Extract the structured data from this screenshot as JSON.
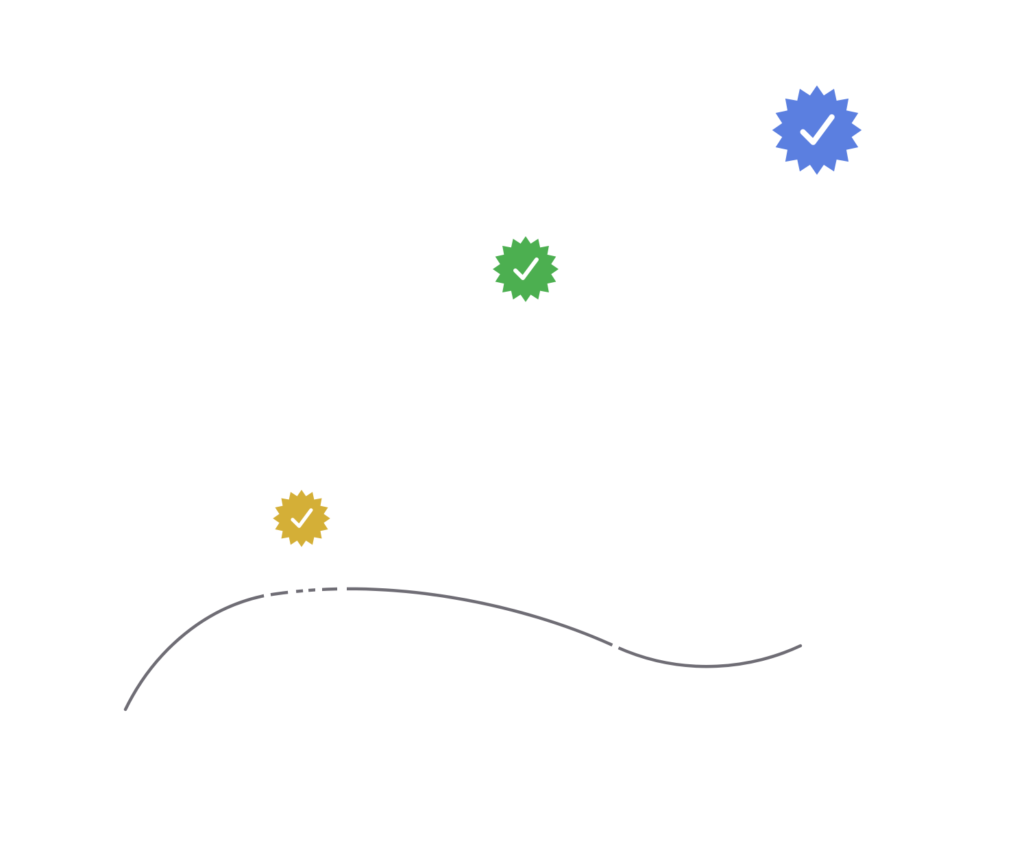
{
  "badges": [
    {
      "icon": "verified-badge-icon",
      "color": "#5b7fe0",
      "check_color": "#ffffff"
    },
    {
      "icon": "verified-badge-icon",
      "color": "#4caf50",
      "check_color": "#ffffff"
    },
    {
      "icon": "verified-badge-icon",
      "color": "#d4af37",
      "check_color": "#ffffff"
    }
  ],
  "curve": {
    "color": "#6f6d75"
  }
}
